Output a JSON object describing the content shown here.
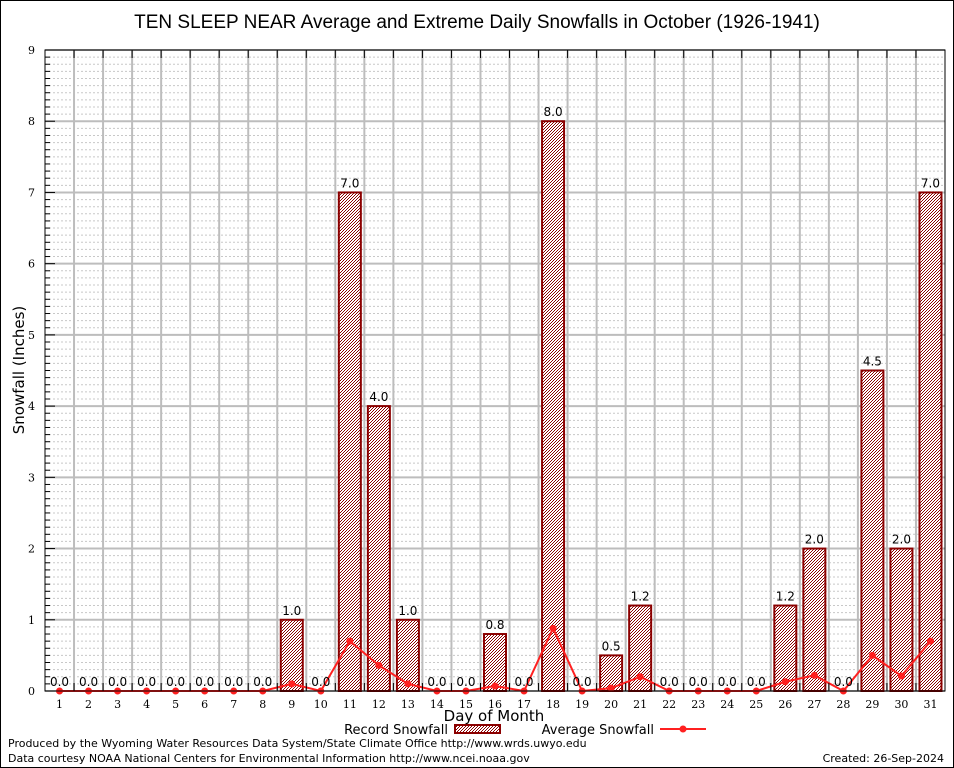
{
  "chart_data": {
    "type": "bar",
    "title": "TEN SLEEP NEAR Average and Extreme Daily Snowfalls in October (1926-1941)",
    "xlabel": "Day of Month",
    "ylabel": "Snowfall (Inches)",
    "ylim": [
      0,
      9
    ],
    "yticks": [
      0,
      1,
      2,
      3,
      4,
      5,
      6,
      7,
      8,
      9
    ],
    "grid": true,
    "categories": [
      "1",
      "2",
      "3",
      "4",
      "5",
      "6",
      "7",
      "8",
      "9",
      "10",
      "11",
      "12",
      "13",
      "14",
      "15",
      "16",
      "17",
      "18",
      "19",
      "20",
      "21",
      "22",
      "23",
      "24",
      "25",
      "26",
      "27",
      "28",
      "29",
      "30",
      "31"
    ],
    "series": [
      {
        "name": "Record Snowfall",
        "type": "bar",
        "color": "#8b0000",
        "values": [
          0.0,
          0.0,
          0.0,
          0.0,
          0.0,
          0.0,
          0.0,
          0.0,
          1.0,
          0.0,
          7.0,
          4.0,
          1.0,
          0.0,
          0.0,
          0.8,
          0.0,
          8.0,
          0.0,
          0.5,
          1.2,
          0.0,
          0.0,
          0.0,
          0.0,
          1.2,
          2.0,
          0.0,
          4.5,
          2.0,
          7.0
        ],
        "labels": [
          "0.0",
          "0.0",
          "0.0",
          "0.0",
          "0.0",
          "0.0",
          "0.0",
          "0.0",
          "1.0",
          "0.0",
          "7.0",
          "4.0",
          "1.0",
          "0.0",
          "0.0",
          "0.8",
          "0.0",
          "8.0",
          "0.0",
          "0.5",
          "1.2",
          "0.0",
          "0.0",
          "0.0",
          "0.0",
          "1.2",
          "2.0",
          "0.0",
          "4.5",
          "2.0",
          "7.0"
        ]
      },
      {
        "name": "Average Snowfall",
        "type": "line",
        "color": "#ff2020",
        "values": [
          0,
          0,
          0,
          0,
          0,
          0,
          0,
          0,
          0.1,
          0,
          0.7,
          0.36,
          0.1,
          0,
          0,
          0.07,
          0,
          0.88,
          0,
          0.04,
          0.2,
          0,
          0,
          0,
          0,
          0.13,
          0.22,
          0,
          0.5,
          0.21,
          0.7
        ]
      }
    ],
    "legend": "bottom-center"
  },
  "footer": {
    "produced_by": "Produced by the Wyoming Water Resources Data System/State Climate Office http://www.wrds.uwyo.edu",
    "data_courtesy": "Data courtesy NOAA National Centers for Environmental Information http://www.ncei.noaa.gov",
    "created": "Created: 26-Sep-2024"
  }
}
